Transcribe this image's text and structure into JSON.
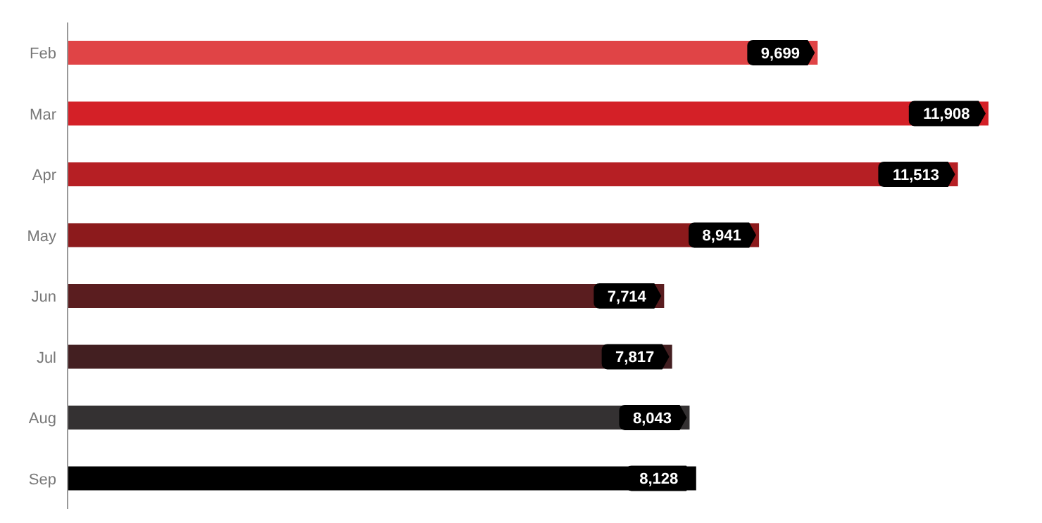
{
  "chart_data": {
    "type": "bar",
    "orientation": "horizontal",
    "categories": [
      "Feb",
      "Mar",
      "Apr",
      "May",
      "Jun",
      "Jul",
      "Aug",
      "Sep"
    ],
    "values": [
      9699,
      11908,
      11513,
      8941,
      7714,
      7817,
      8043,
      8128
    ],
    "colors": [
      "#e04446",
      "#d42027",
      "#b61f24",
      "#8c1a1c",
      "#5a1d1f",
      "#431f21",
      "#343132",
      "#000000"
    ],
    "value_labels": [
      "9,699",
      "11,908",
      "11,513",
      "8,941",
      "7,714",
      "7,817",
      "8,043",
      "8,128"
    ],
    "grid": false,
    "legend": false
  }
}
